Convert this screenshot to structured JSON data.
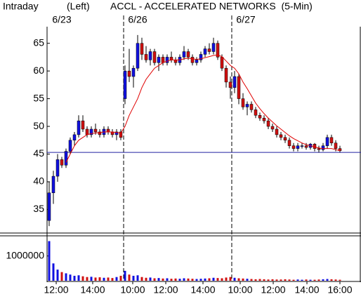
{
  "chart_data": {
    "type": "candlestick",
    "header": {
      "mode": "Intraday",
      "scale": "(Left)",
      "title": "ACCL - ACCELERATED NETWORKS  (5-Min)"
    },
    "x": [
      0,
      1,
      2,
      3,
      4,
      5,
      6,
      7,
      8,
      9,
      10,
      11,
      12,
      13,
      14,
      15,
      16,
      17,
      18,
      19,
      20,
      21,
      22,
      23,
      24,
      25,
      26,
      27,
      28,
      29,
      30,
      31,
      32,
      33,
      34,
      35,
      36,
      37,
      38,
      39,
      40,
      41,
      42,
      43,
      44,
      45,
      46,
      47,
      48,
      49,
      50,
      51,
      52,
      53,
      54,
      55,
      56,
      57,
      58,
      59,
      60,
      61,
      62,
      63,
      64,
      65,
      66,
      67,
      68,
      69
    ],
    "open": [
      33,
      38,
      41,
      44,
      43,
      45.5,
      47.5,
      48.5,
      51,
      49.5,
      48.5,
      49.5,
      49,
      48.5,
      49.5,
      49,
      48.5,
      49,
      55,
      60,
      59,
      60.5,
      65,
      63,
      62,
      63.5,
      61.5,
      62.5,
      61.5,
      62.5,
      62,
      61.5,
      62.5,
      63.5,
      62.5,
      61.5,
      62,
      63,
      64,
      63.5,
      65,
      62.5,
      60.5,
      58,
      57,
      59,
      55,
      53.5,
      54,
      53,
      52,
      51.5,
      51,
      50,
      49.5,
      48.5,
      48,
      47.5,
      46.5,
      46,
      46.5,
      46.5,
      46.2,
      46.8,
      46,
      45.8,
      46.5,
      48,
      47,
      46
    ],
    "high": [
      40,
      42,
      45,
      44.5,
      46,
      48,
      49,
      52,
      52,
      50,
      50,
      50.5,
      49.5,
      50,
      50,
      49.5,
      49.5,
      49.5,
      61,
      64,
      61,
      66.5,
      66,
      64.5,
      64,
      64,
      63,
      63,
      63,
      63.5,
      62.5,
      63,
      64.5,
      64,
      63,
      62.5,
      63.5,
      64.5,
      65,
      66,
      65.5,
      63,
      61,
      59,
      60,
      59.5,
      56,
      54.5,
      54.5,
      53.5,
      52.5,
      52,
      51.5,
      50.5,
      50,
      49,
      48.5,
      48,
      47,
      47,
      47,
      47,
      47,
      47,
      46.5,
      47,
      48.5,
      48.5,
      47.5,
      46.5
    ],
    "low": [
      32,
      36,
      40,
      42.5,
      42.5,
      45,
      46.5,
      48,
      49,
      48,
      48,
      48.5,
      48,
      48,
      48.5,
      48,
      47.5,
      47.5,
      54,
      58,
      57,
      60,
      62,
      61.5,
      61,
      61,
      60,
      61,
      61,
      61.5,
      61,
      61,
      62,
      62,
      61,
      61,
      61.5,
      62.5,
      63,
      63,
      62,
      60,
      57,
      55,
      56,
      54,
      53,
      52,
      52.5,
      51.5,
      51,
      50.5,
      49.5,
      49,
      48,
      47.5,
      47,
      46,
      45.5,
      45.5,
      46,
      45.8,
      45.8,
      45.5,
      45.3,
      45.5,
      46,
      46.5,
      45.5,
      45.3
    ],
    "close": [
      38,
      41,
      44,
      43,
      45.5,
      47.5,
      48.5,
      51,
      49.5,
      48.5,
      49.5,
      49,
      48.5,
      49.5,
      49,
      48.5,
      49,
      48,
      60,
      59,
      60.5,
      65,
      63,
      62,
      63.5,
      61.5,
      62.5,
      61.5,
      62.5,
      62,
      61.5,
      62.5,
      63.5,
      62.5,
      61.5,
      62,
      63,
      64,
      63.5,
      65,
      62.5,
      60.5,
      58,
      57,
      59,
      55,
      53.5,
      54,
      53,
      52,
      51.5,
      51,
      50,
      49.5,
      48.5,
      48,
      47.5,
      46.5,
      46,
      46.5,
      46.5,
      46.2,
      46.8,
      46,
      45.8,
      46.5,
      48,
      47,
      46,
      45.6
    ],
    "volume": [
      1600000,
      700000,
      450000,
      350000,
      300000,
      250000,
      200000,
      220000,
      180000,
      150000,
      160000,
      130000,
      140000,
      120000,
      130000,
      110000,
      150000,
      200000,
      400000,
      250000,
      200000,
      220000,
      150000,
      120000,
      130000,
      100000,
      110000,
      90000,
      100000,
      80000,
      90000,
      80000,
      100000,
      90000,
      80000,
      70000,
      80000,
      90000,
      100000,
      120000,
      110000,
      100000,
      130000,
      150000,
      120000,
      100000,
      90000,
      80000,
      70000,
      60000,
      70000,
      60000,
      50000,
      60000,
      50000,
      50000,
      60000,
      50000,
      40000,
      50000,
      40000,
      50000,
      40000,
      40000,
      50000,
      60000,
      70000,
      60000,
      50000,
      40000
    ],
    "ma": [
      null,
      null,
      null,
      null,
      43.5,
      45,
      46.5,
      47.5,
      48,
      48.5,
      48.7,
      48.8,
      48.9,
      49,
      49,
      49,
      48.9,
      48.8,
      50,
      52,
      53.5,
      55,
      57,
      58.5,
      59.5,
      60.5,
      61,
      61.5,
      61.8,
      62,
      62,
      62,
      62.2,
      62.3,
      62.2,
      62.1,
      62.2,
      62.4,
      62.6,
      62.8,
      62.9,
      62.6,
      61.8,
      61,
      60.5,
      59.5,
      58,
      56.8,
      55.5,
      54.2,
      53.2,
      52.3,
      51.5,
      50.8,
      50.1,
      49.5,
      48.9,
      48.3,
      47.8,
      47.4,
      47,
      46.7,
      46.5,
      46.3,
      46.1,
      46,
      46,
      46,
      45.8,
      45.6
    ],
    "hline": 45.3,
    "up_color": "#1010e0",
    "down_color": "#d01010",
    "ma_color": "#e00000",
    "hline_color": "#2020a0",
    "xlim": [
      -0.5,
      74
    ],
    "ylim": [
      31,
      68
    ],
    "yticks": [
      35,
      40,
      45,
      50,
      55,
      60,
      65
    ],
    "volume_ylim": [
      0,
      1700000
    ],
    "volume_yticks": [
      1000000
    ],
    "xticks": [
      {
        "value": 1.67,
        "label": "12:00"
      },
      {
        "value": 10.33,
        "label": "14:00"
      },
      {
        "value": 19.83,
        "label": "10:00"
      },
      {
        "value": 27.67,
        "label": "12:00"
      },
      {
        "value": 36.5,
        "label": "14:00"
      },
      {
        "value": 45.33,
        "label": "10:00"
      },
      {
        "value": 53.17,
        "label": "12:00"
      },
      {
        "value": 61.17,
        "label": "14:00"
      },
      {
        "value": 69,
        "label": "16:00"
      }
    ],
    "dividers": [
      17.67,
      43.33
    ],
    "day_labels": [
      {
        "value": 3,
        "label": "6/23"
      },
      {
        "value": 21,
        "label": "6/26"
      },
      {
        "value": 46.67,
        "label": "6/27"
      }
    ]
  }
}
